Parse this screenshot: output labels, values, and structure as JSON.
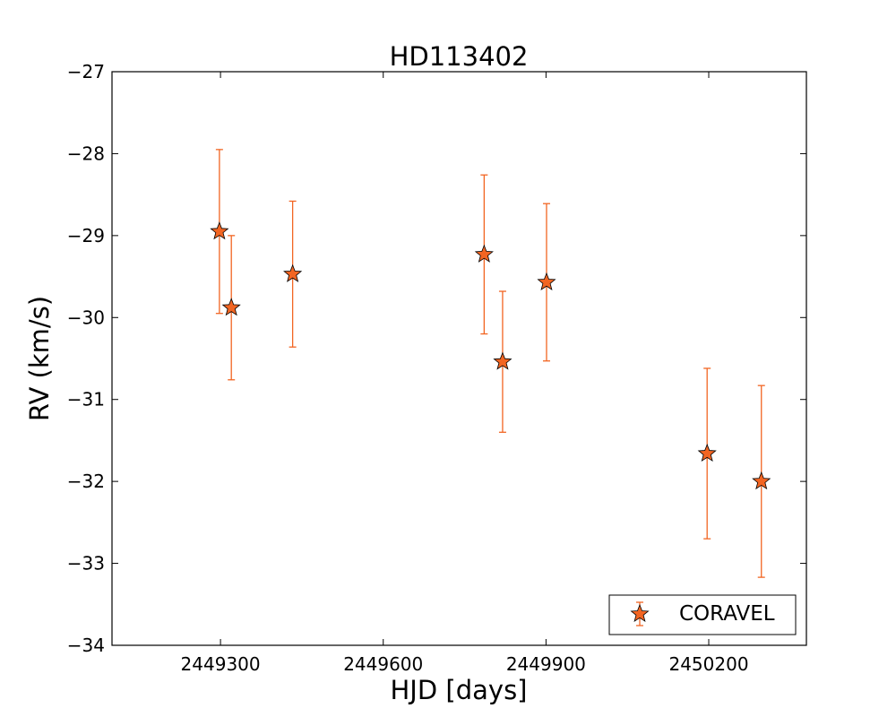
{
  "chart_data": {
    "type": "scatter",
    "title": "HD113402",
    "xlabel": "HJD [days]",
    "ylabel": "RV (km/s)",
    "xlim": [
      2449100,
      2450380
    ],
    "ylim": [
      -34,
      -27
    ],
    "xticks": [
      2449300,
      2449600,
      2449900,
      2450200
    ],
    "xtick_labels": [
      "2449300",
      "2449600",
      "2449900",
      "2450200"
    ],
    "yticks": [
      -34,
      -33,
      -32,
      -31,
      -30,
      -29,
      -28,
      -27
    ],
    "ytick_labels": [
      "−34",
      "−33",
      "−32",
      "−31",
      "−30",
      "−29",
      "−28",
      "−27"
    ],
    "grid": false,
    "legend_position": "bottom-right",
    "series": [
      {
        "name": "CORAVEL",
        "marker": "star",
        "color": "#f26522",
        "points": [
          {
            "x": 2449298,
            "y": -28.95,
            "err": 1.0
          },
          {
            "x": 2449320,
            "y": -29.88,
            "err": 0.88
          },
          {
            "x": 2449433,
            "y": -29.47,
            "err": 0.89
          },
          {
            "x": 2449786,
            "y": -29.23,
            "err": 0.97
          },
          {
            "x": 2449820,
            "y": -30.54,
            "err": 0.86
          },
          {
            "x": 2449901,
            "y": -29.57,
            "err": 0.96
          },
          {
            "x": 2450197,
            "y": -31.66,
            "err": 1.04
          },
          {
            "x": 2450297,
            "y": -32.0,
            "err": 1.17
          }
        ]
      }
    ]
  }
}
